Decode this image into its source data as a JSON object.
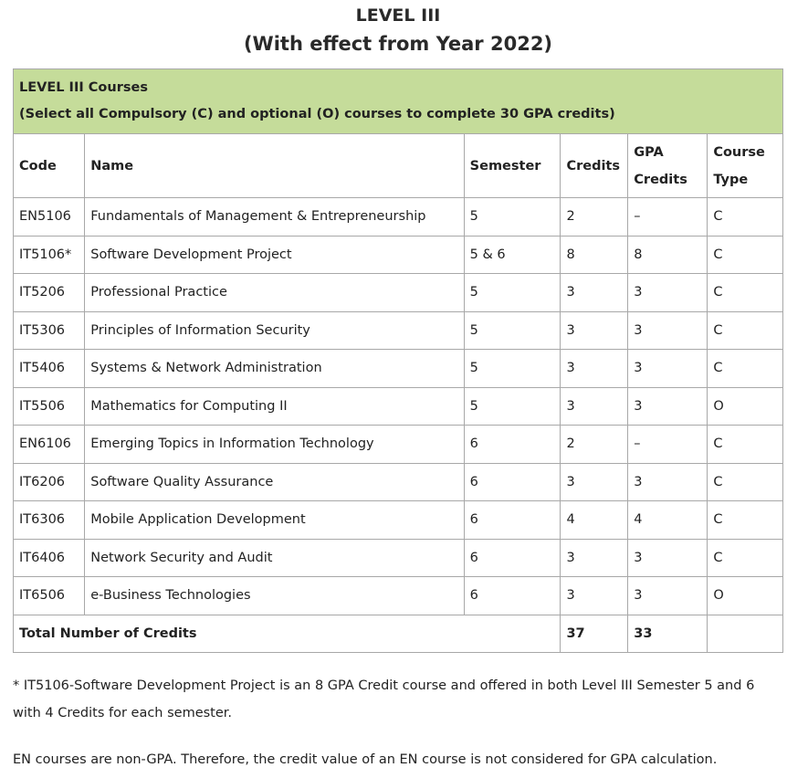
{
  "title": {
    "line1": "LEVEL III",
    "line2": "(With effect from Year 2022)"
  },
  "table": {
    "banner_title": "LEVEL III Courses",
    "banner_subtitle": "(Select all Compulsory (C) and optional (O) courses to complete 30 GPA credits)",
    "headers": {
      "code": "Code",
      "name": "Name",
      "semester": "Semester",
      "credits": "Credits",
      "gpa_line1": "GPA",
      "gpa_line2": "Credits",
      "type_line1": "Course",
      "type_line2": "Type"
    },
    "rows": [
      {
        "code": "EN5106",
        "name": "Fundamentals of Management & Entrepreneurship",
        "semester": "5",
        "credits": "2",
        "gpa": "–",
        "type": "C"
      },
      {
        "code": "IT5106*",
        "name": "Software Development Project",
        "semester": "5 & 6",
        "credits": "8",
        "gpa": "8",
        "type": "C"
      },
      {
        "code": "IT5206",
        "name": "Professional Practice",
        "semester": "5",
        "credits": "3",
        "gpa": "3",
        "type": "C"
      },
      {
        "code": "IT5306",
        "name": "Principles of Information Security",
        "semester": "5",
        "credits": "3",
        "gpa": "3",
        "type": "C"
      },
      {
        "code": "IT5406",
        "name": "Systems & Network Administration",
        "semester": "5",
        "credits": "3",
        "gpa": "3",
        "type": "C"
      },
      {
        "code": "IT5506",
        "name": "Mathematics for Computing II",
        "semester": "5",
        "credits": "3",
        "gpa": "3",
        "type": "O"
      },
      {
        "code": "EN6106",
        "name": "Emerging Topics in Information Technology",
        "semester": "6",
        "credits": "2",
        "gpa": "–",
        "type": "C"
      },
      {
        "code": "IT6206",
        "name": "Software Quality Assurance",
        "semester": "6",
        "credits": "3",
        "gpa": "3",
        "type": "C"
      },
      {
        "code": "IT6306",
        "name": "Mobile Application Development",
        "semester": "6",
        "credits": "4",
        "gpa": "4",
        "type": "C"
      },
      {
        "code": "IT6406",
        "name": "Network Security and Audit",
        "semester": "6",
        "credits": "3",
        "gpa": "3",
        "type": "C"
      },
      {
        "code": "IT6506",
        "name": "e-Business Technologies",
        "semester": "6",
        "credits": "3",
        "gpa": "3",
        "type": "O"
      }
    ],
    "total": {
      "label": "Total Number of Credits",
      "credits": "37",
      "gpa": "33"
    }
  },
  "notes": {
    "project_note": "* IT5106-Software Development Project is an 8 GPA Credit course and offered in both Level III Semester 5 and 6 with 4 Credits for each semester.",
    "en_note": "EN courses are non-GPA. Therefore, the credit value of an EN course is not considered for GPA calculation."
  },
  "colors": {
    "banner_background": "#c5dc9a",
    "border": "#a8a8a8"
  }
}
